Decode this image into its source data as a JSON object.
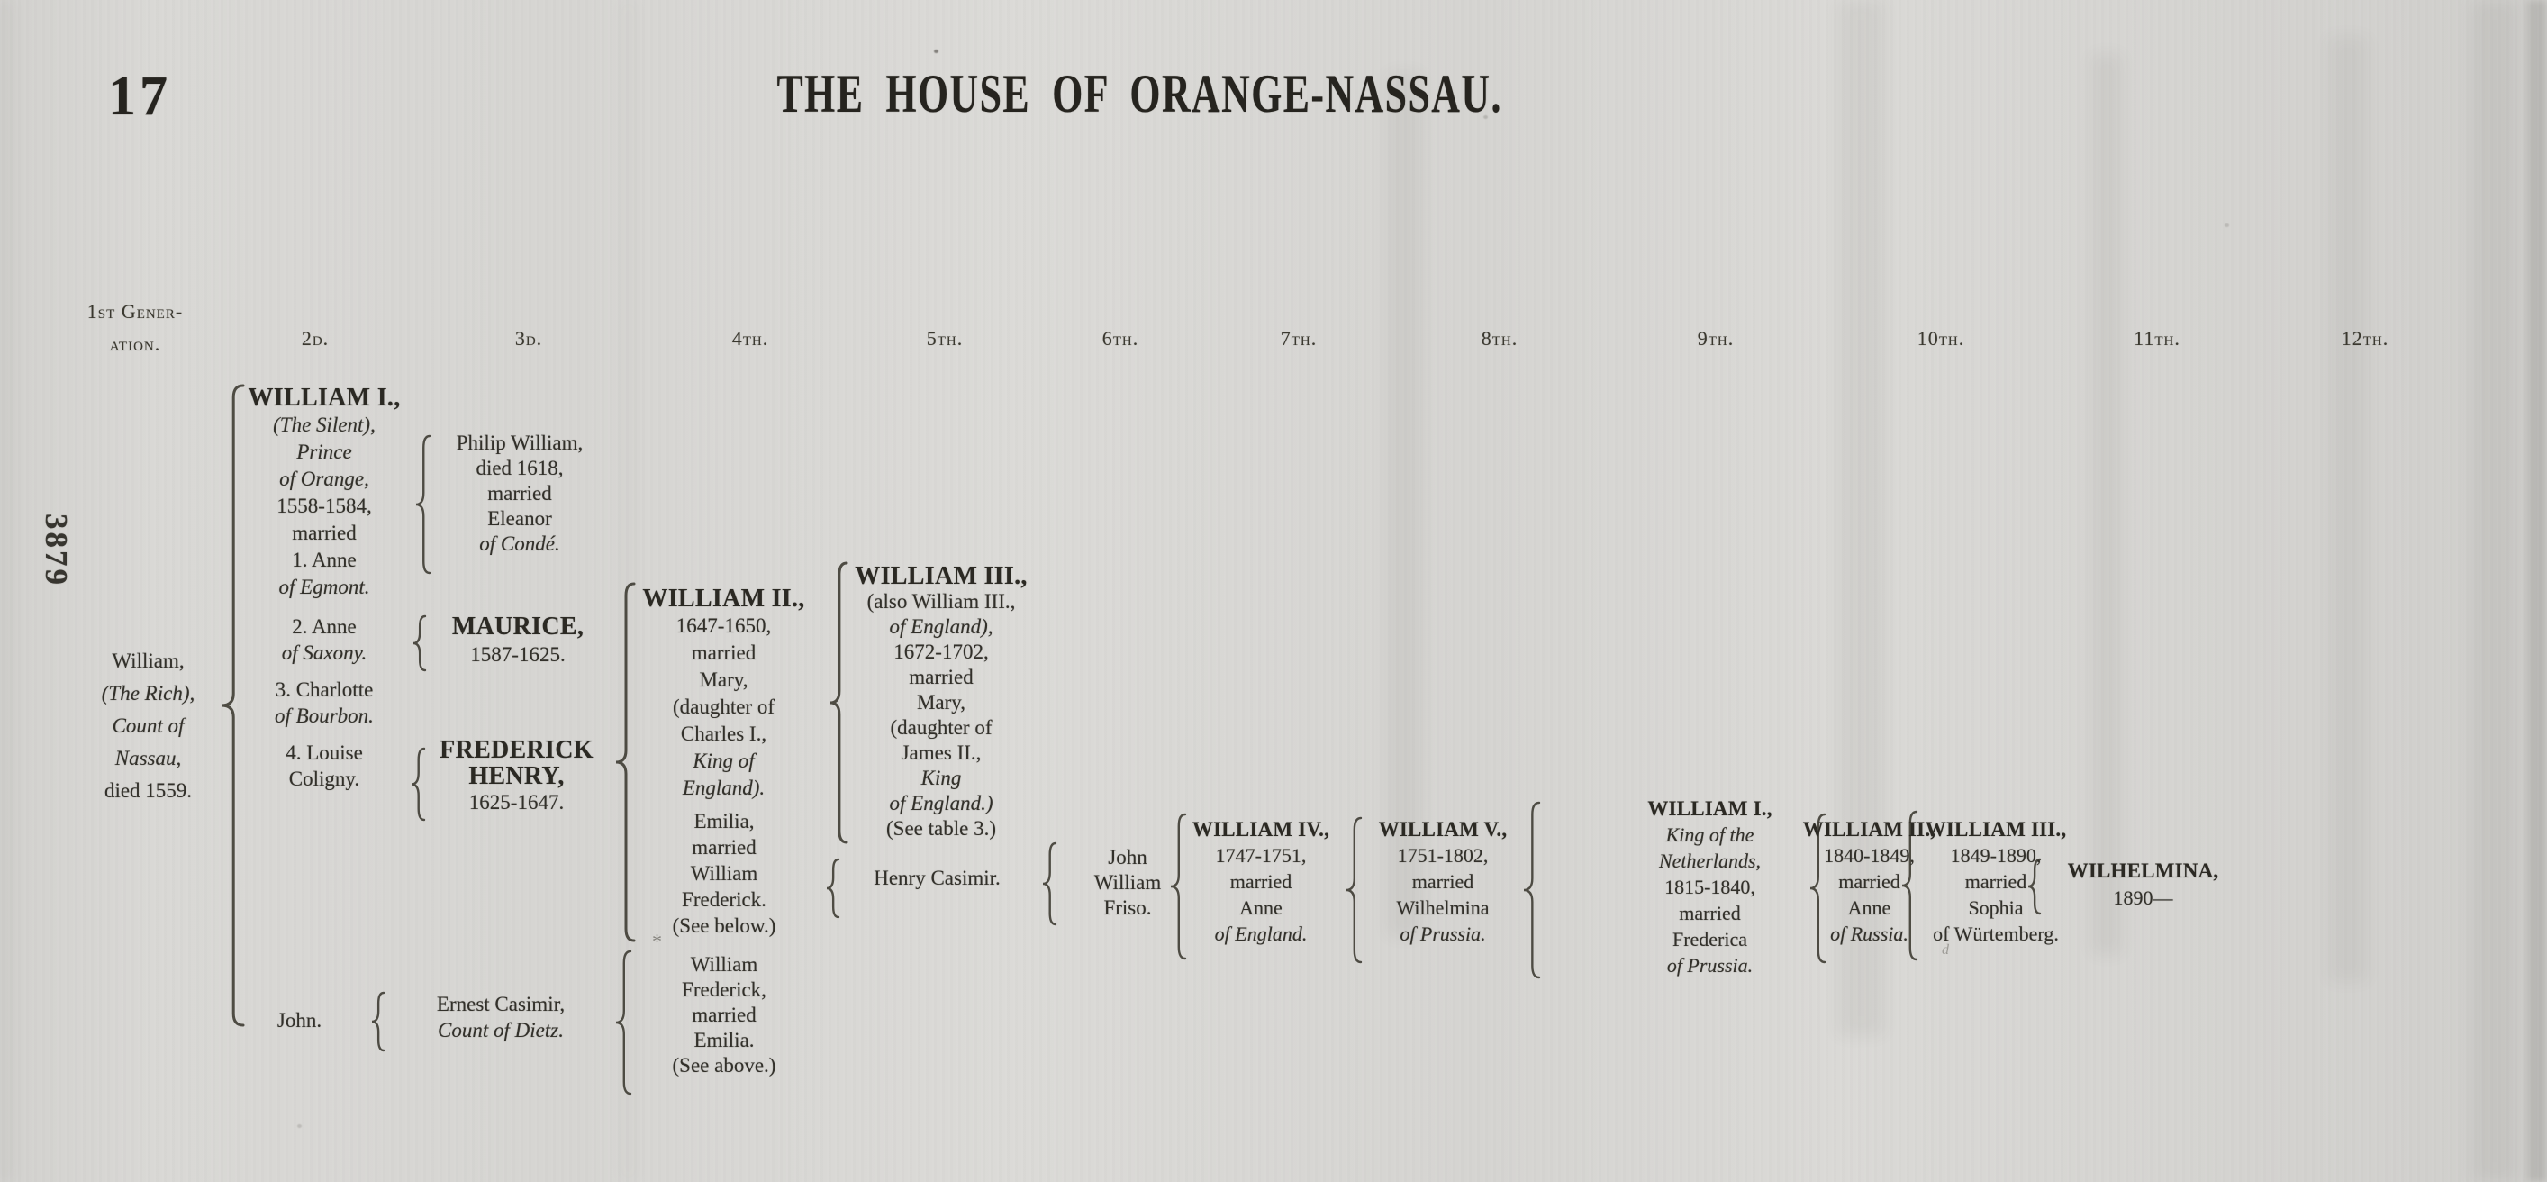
{
  "page": {
    "number": "17",
    "title": "THE HOUSE OF ORANGE-NASSAU.",
    "margin_note": "3879"
  },
  "generation_headers": {
    "g1": [
      {
        "t": "1st Gener-"
      },
      {
        "t": "ation."
      }
    ],
    "g2": [
      {
        "t": "2d."
      }
    ],
    "g3": [
      {
        "t": "3d."
      }
    ],
    "g4": [
      {
        "t": "4th."
      }
    ],
    "g5": [
      {
        "t": "5th."
      }
    ],
    "g6": [
      {
        "t": "6th."
      }
    ],
    "g7": [
      {
        "t": "7th."
      }
    ],
    "g8": [
      {
        "t": "8th."
      }
    ],
    "g9": [
      {
        "t": "9th."
      }
    ],
    "g10": [
      {
        "t": "10th."
      }
    ],
    "g11": [
      {
        "t": "11th."
      }
    ],
    "g12": [
      {
        "t": "12th."
      }
    ]
  },
  "tree": {
    "gen1_william_rich": [
      {
        "t": "William,"
      },
      {
        "t": "(The Rich),",
        "s": "i"
      },
      {
        "t": "Count of",
        "s": "i"
      },
      {
        "t": "Nassau,",
        "s": "i"
      },
      {
        "t": "died 1559."
      }
    ],
    "william_i": [
      {
        "t": "WILLIAM I.,",
        "s": "b"
      },
      {
        "t": "(The Silent),",
        "s": "i"
      },
      {
        "t": "Prince",
        "s": "i"
      },
      {
        "t": "of Orange,",
        "s": "i"
      },
      {
        "t": "1558-1584,"
      },
      {
        "t": "married"
      },
      {
        "t": "1. Anne"
      },
      {
        "t": "of Egmont.",
        "s": "i"
      }
    ],
    "wife2": [
      {
        "t": "2. Anne"
      },
      {
        "t": "of Saxony.",
        "s": "i"
      }
    ],
    "wife3": [
      {
        "t": "3. Charlotte"
      },
      {
        "t": "of Bourbon.",
        "s": "i"
      }
    ],
    "wife4": [
      {
        "t": "4. Louise"
      },
      {
        "t": "Coligny."
      }
    ],
    "john": [
      {
        "t": "John."
      }
    ],
    "philip_william": [
      {
        "t": "Philip William,"
      },
      {
        "t": "died 1618,"
      },
      {
        "t": "married"
      },
      {
        "t": "Eleanor"
      },
      {
        "t": "of Condé.",
        "s": "i"
      }
    ],
    "maurice": [
      {
        "t": "MAURICE,",
        "s": "b"
      },
      {
        "t": "1587-1625."
      }
    ],
    "frederick_henry": [
      {
        "t": "FREDERICK",
        "s": "b"
      },
      {
        "t": "HENRY,",
        "s": "b"
      },
      {
        "t": "1625-1647."
      }
    ],
    "ernest_casimir": [
      {
        "t": "Ernest Casimir,"
      },
      {
        "t": "Count of Dietz.",
        "s": "i"
      }
    ],
    "william_ii": [
      {
        "t": "WILLIAM II.,",
        "s": "b"
      },
      {
        "t": "1647-1650,"
      },
      {
        "t": "married"
      },
      {
        "t": "Mary,"
      },
      {
        "t": "(daughter of"
      },
      {
        "t": "Charles I.,"
      },
      {
        "t": "King of",
        "s": "i"
      },
      {
        "t": "England).",
        "s": "i"
      }
    ],
    "emilia": [
      {
        "t": "Emilia,"
      },
      {
        "t": "married"
      },
      {
        "t": "William"
      },
      {
        "t": "Frederick."
      },
      {
        "t": "(See below.)"
      }
    ],
    "william_frederick": [
      {
        "t": "William"
      },
      {
        "t": "Frederick,"
      },
      {
        "t": "married"
      },
      {
        "t": "Emilia."
      },
      {
        "t": "(See above.)"
      }
    ],
    "william_iii": [
      {
        "t": "WILLIAM III.,",
        "s": "b"
      },
      {
        "t": "(also William III.,"
      },
      {
        "t": "of England),",
        "s": "i"
      },
      {
        "t": "1672-1702,"
      },
      {
        "t": "married"
      },
      {
        "t": "Mary,"
      },
      {
        "t": "(daughter of"
      },
      {
        "t": "James II.,"
      },
      {
        "t": "King",
        "s": "i"
      },
      {
        "t": "of England.)",
        "s": "i"
      },
      {
        "t": "(See table 3.)"
      }
    ],
    "henry_casimir": [
      {
        "t": "Henry Casimir."
      }
    ],
    "john_william_friso": [
      {
        "t": "John"
      },
      {
        "t": "William"
      },
      {
        "t": "Friso."
      }
    ],
    "william_iv": [
      {
        "t": "WILLIAM IV.,",
        "s": "b2"
      },
      {
        "t": "1747-1751,"
      },
      {
        "t": "married"
      },
      {
        "t": "Anne"
      },
      {
        "t": "of England.",
        "s": "i"
      }
    ],
    "william_v": [
      {
        "t": "WILLIAM V.,",
        "s": "b2"
      },
      {
        "t": "1751-1802,"
      },
      {
        "t": "married"
      },
      {
        "t": "Wilhelmina"
      },
      {
        "t": "of Prussia.",
        "s": "i"
      }
    ],
    "william_i_netherlands": [
      {
        "t": "WILLIAM I.,",
        "s": "b2"
      },
      {
        "t": "King of the",
        "s": "i"
      },
      {
        "t": "Netherlands,",
        "s": "i"
      },
      {
        "t": "1815-1840,"
      },
      {
        "t": "married"
      },
      {
        "t": "Frederica"
      },
      {
        "t": "of Prussia.",
        "s": "i"
      }
    ],
    "william_ii_king": [
      {
        "t": "WILLIAM II.,",
        "s": "b2"
      },
      {
        "t": "1840-1849,"
      },
      {
        "t": "married"
      },
      {
        "t": "Anne"
      },
      {
        "t": "of Russia.",
        "s": "i"
      }
    ],
    "william_iii_king": [
      {
        "t": "WILLIAM III.,",
        "s": "b2"
      },
      {
        "t": "1849-1890,"
      },
      {
        "t": "married"
      },
      {
        "t": "Sophia"
      },
      {
        "t": "of Würtemberg."
      }
    ],
    "wilhelmina": [
      {
        "t": "WILHELMINA,",
        "s": "b2"
      },
      {
        "t": "1890—"
      }
    ]
  },
  "marks": {
    "asterisk": "*",
    "stray": "d"
  }
}
